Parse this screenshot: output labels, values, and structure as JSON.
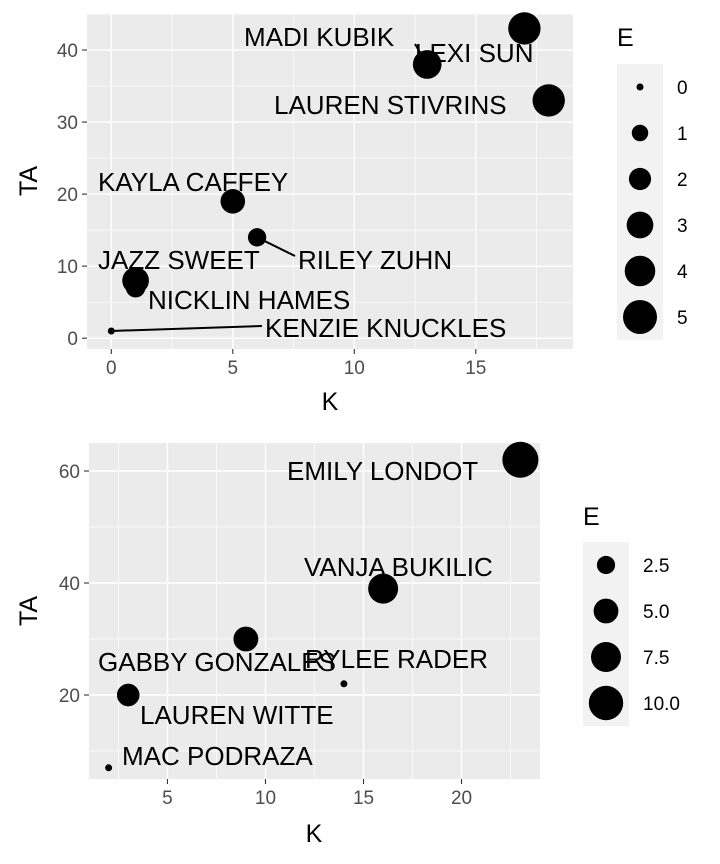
{
  "chart_data": [
    {
      "type": "scatter",
      "xlabel": "K",
      "ylabel": "TA",
      "xlim": [
        -1,
        19
      ],
      "ylim": [
        -1.5,
        45
      ],
      "xticks": [
        0,
        5,
        10,
        15
      ],
      "yticks": [
        0,
        10,
        20,
        30,
        40
      ],
      "grid": true,
      "legend": {
        "title": "E",
        "placement": "right",
        "entries": [
          {
            "label": "0",
            "value": 0
          },
          {
            "label": "1",
            "value": 1
          },
          {
            "label": "2",
            "value": 2
          },
          {
            "label": "3",
            "value": 3
          },
          {
            "label": "4",
            "value": 4
          },
          {
            "label": "5",
            "value": 5
          }
        ]
      },
      "size_range": [
        0,
        5
      ],
      "points": [
        {
          "label": "MADI KUBIK",
          "x": 13,
          "y": 38,
          "size": 3.5
        },
        {
          "label": "LEXI SUN",
          "x": 17,
          "y": 43,
          "size": 4.5
        },
        {
          "label": "LAUREN STIVRINS",
          "x": 18,
          "y": 33,
          "size": 4.5
        },
        {
          "label": "KAYLA CAFFEY",
          "x": 5,
          "y": 19,
          "size": 2.5
        },
        {
          "label": "RILEY ZUHN",
          "x": 6,
          "y": 14,
          "size": 1.3
        },
        {
          "label": "JAZZ SWEET",
          "x": 1,
          "y": 8,
          "size": 3
        },
        {
          "label": "NICKLIN HAMES",
          "x": 1,
          "y": 7,
          "size": 1.5
        },
        {
          "label": "KENZIE KNUCKLES",
          "x": 0,
          "y": 1,
          "size": 0
        }
      ]
    },
    {
      "type": "scatter",
      "xlabel": "K",
      "ylabel": "TA",
      "xlim": [
        1,
        24
      ],
      "ylim": [
        5,
        65
      ],
      "xticks": [
        5,
        10,
        15,
        20
      ],
      "yticks": [
        20,
        40,
        60
      ],
      "grid": true,
      "legend": {
        "title": "E",
        "placement": "right",
        "entries": [
          {
            "label": "2.5",
            "value": 2.5
          },
          {
            "label": "5.0",
            "value": 5.0
          },
          {
            "label": "7.5",
            "value": 7.5
          },
          {
            "label": "10.0",
            "value": 10.0
          }
        ]
      },
      "size_range": [
        0,
        11
      ],
      "points": [
        {
          "label": "EMILY LONDOT",
          "x": 23,
          "y": 62,
          "size": 11
        },
        {
          "label": "VANJA BUKILIC",
          "x": 16,
          "y": 39,
          "size": 7.5
        },
        {
          "label": "",
          "x": 9,
          "y": 30,
          "size": 5
        },
        {
          "label": "RYLEE RADER",
          "x": 14,
          "y": 22,
          "size": 0
        },
        {
          "label": "GABBY GONZALES",
          "x": 3,
          "y": 20,
          "size": 4
        },
        {
          "label": "LAUREN WITTE",
          "x": 3,
          "y": 20,
          "size": 4
        },
        {
          "label": "MAC PODRAZA",
          "x": 2,
          "y": 7,
          "size": 0
        }
      ]
    }
  ]
}
